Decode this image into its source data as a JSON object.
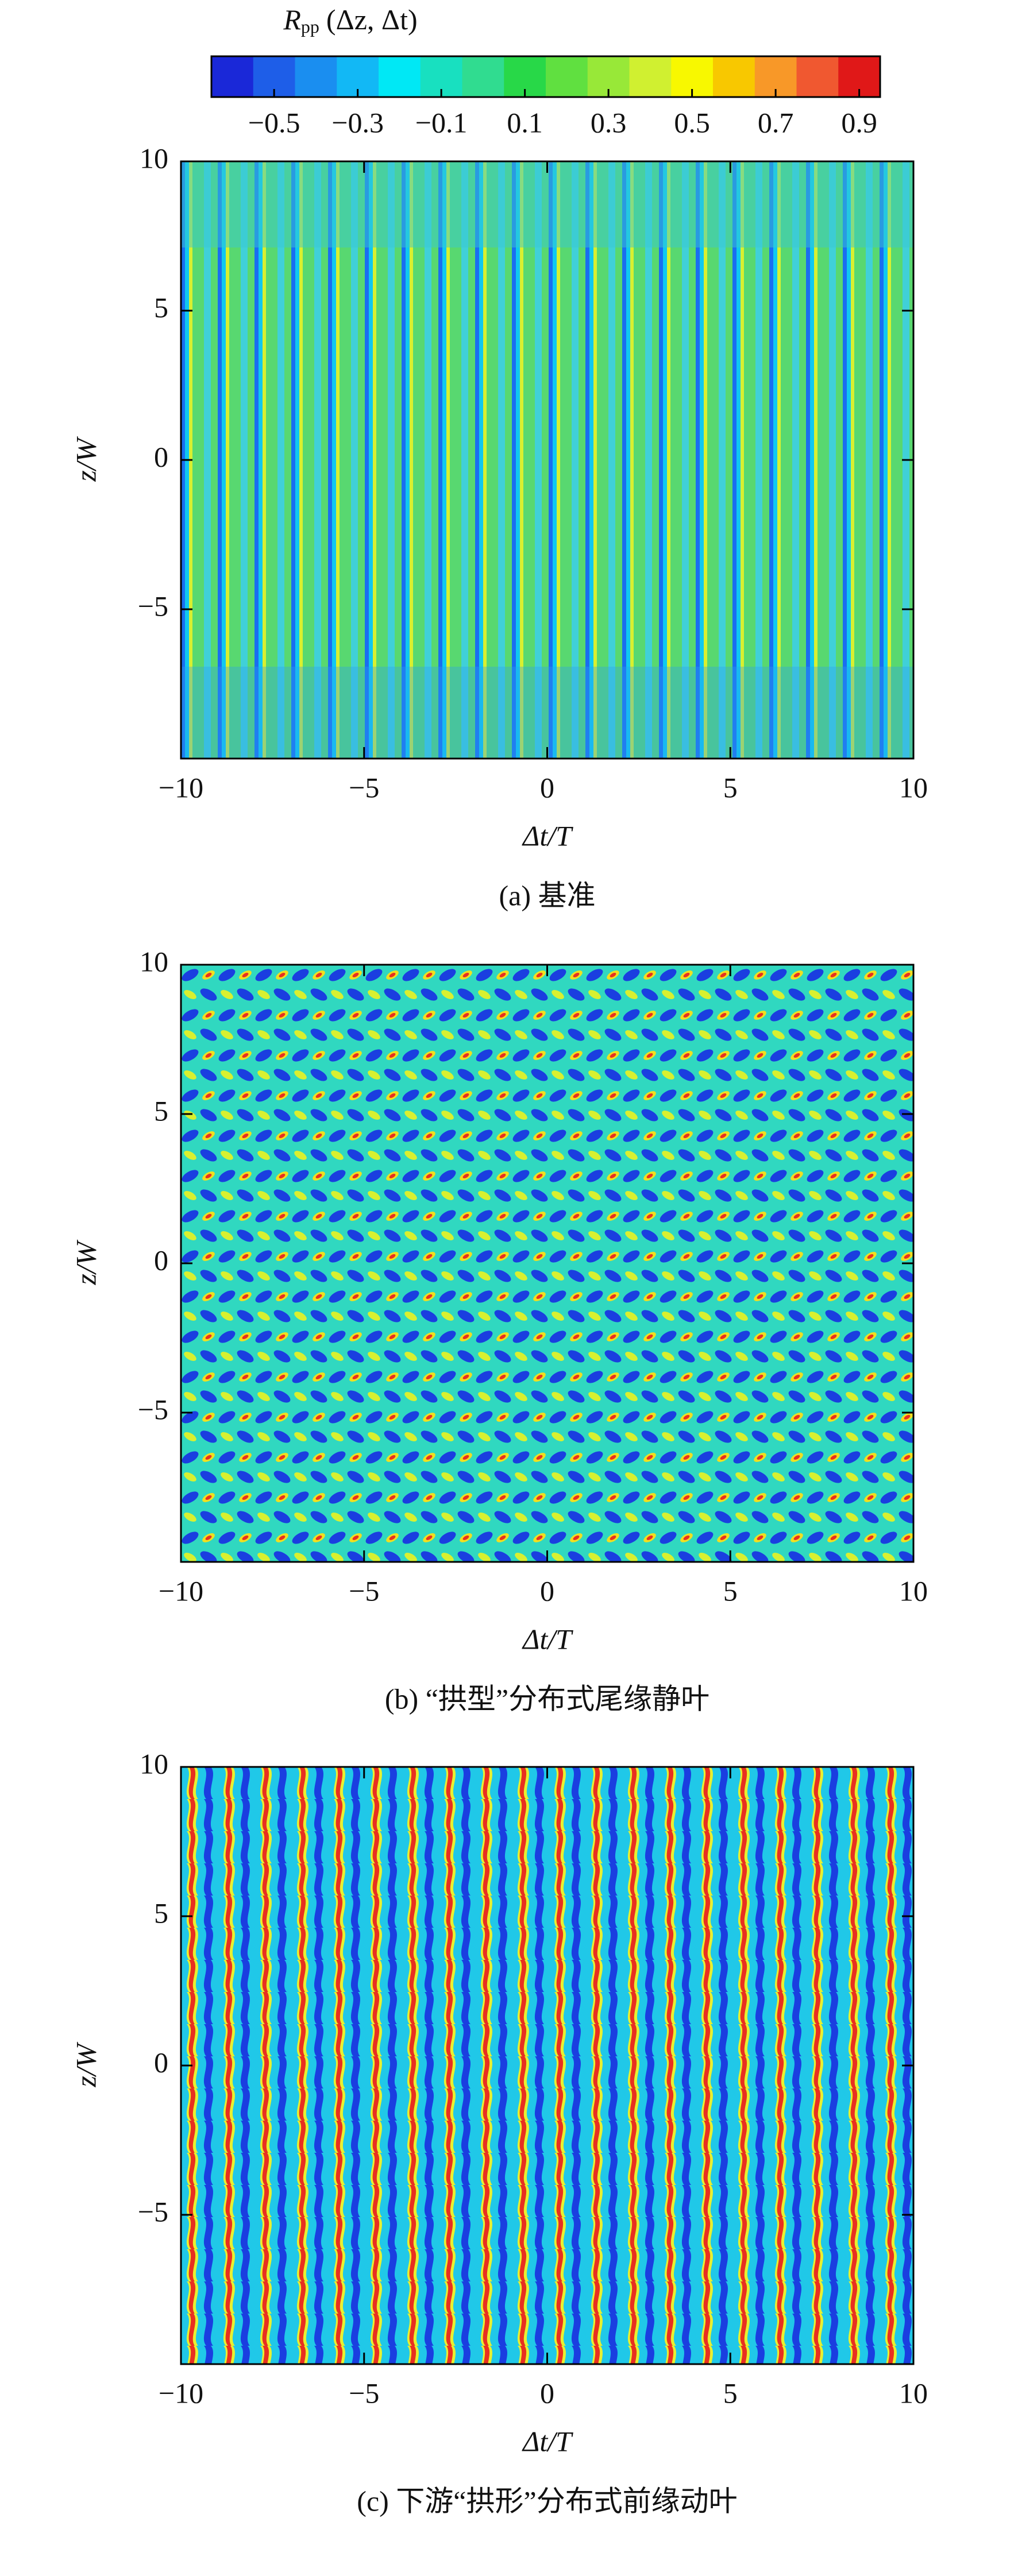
{
  "colorbar": {
    "label_symbol": "R",
    "label_subscript": "pp",
    "label_args": "(Δz, Δt)",
    "clim": [
      -0.65,
      0.95
    ],
    "colors": [
      "#1a28d8",
      "#1e5ee8",
      "#1a8ef0",
      "#12b8f5",
      "#00e8f5",
      "#18e0c0",
      "#30dc90",
      "#28d848",
      "#60e040",
      "#98e838",
      "#d0f030",
      "#f8f800",
      "#f8c800",
      "#f89828",
      "#f05830",
      "#e01818"
    ],
    "ticks": [
      {
        "value": -0.5,
        "label": "−0.5"
      },
      {
        "value": -0.3,
        "label": "−0.3"
      },
      {
        "value": -0.1,
        "label": "−0.1"
      },
      0.1,
      0.3,
      0.5,
      0.7,
      0.9
    ]
  },
  "chart_data": [
    {
      "type": "contour",
      "caption": "(a) 基准",
      "xlabel": "Δt/T",
      "ylabel": "z/W",
      "xlim": [
        -10,
        10
      ],
      "ylim": [
        -10,
        10
      ],
      "xticks": [
        {
          "value": -10,
          "label": "−10"
        },
        {
          "value": -5,
          "label": "−5"
        },
        0,
        5,
        10
      ],
      "yticks": [
        {
          "value": -5,
          "label": "−5"
        },
        0,
        5,
        10
      ]
    },
    {
      "type": "contour",
      "caption": "(b) “拱型”分布式尾缘静叶",
      "xlabel": "Δt/T",
      "ylabel": "z/W",
      "xlim": [
        -10,
        10
      ],
      "ylim": [
        -10,
        10
      ],
      "xticks": [
        {
          "value": -10,
          "label": "−10"
        },
        {
          "value": -5,
          "label": "−5"
        },
        0,
        5,
        10
      ],
      "yticks": [
        {
          "value": -5,
          "label": "−5"
        },
        0,
        5,
        10
      ]
    },
    {
      "type": "contour",
      "caption": "(c) 下游“拱形”分布式前缘动叶",
      "xlabel": "Δt/T",
      "ylabel": "z/W",
      "xlim": [
        -10,
        10
      ],
      "ylim": [
        -10,
        10
      ],
      "xticks": [
        {
          "value": -10,
          "label": "−10"
        },
        {
          "value": -5,
          "label": "−5"
        },
        0,
        5,
        10
      ],
      "yticks": [
        {
          "value": -5,
          "label": "−5"
        },
        0,
        5,
        10
      ]
    }
  ]
}
